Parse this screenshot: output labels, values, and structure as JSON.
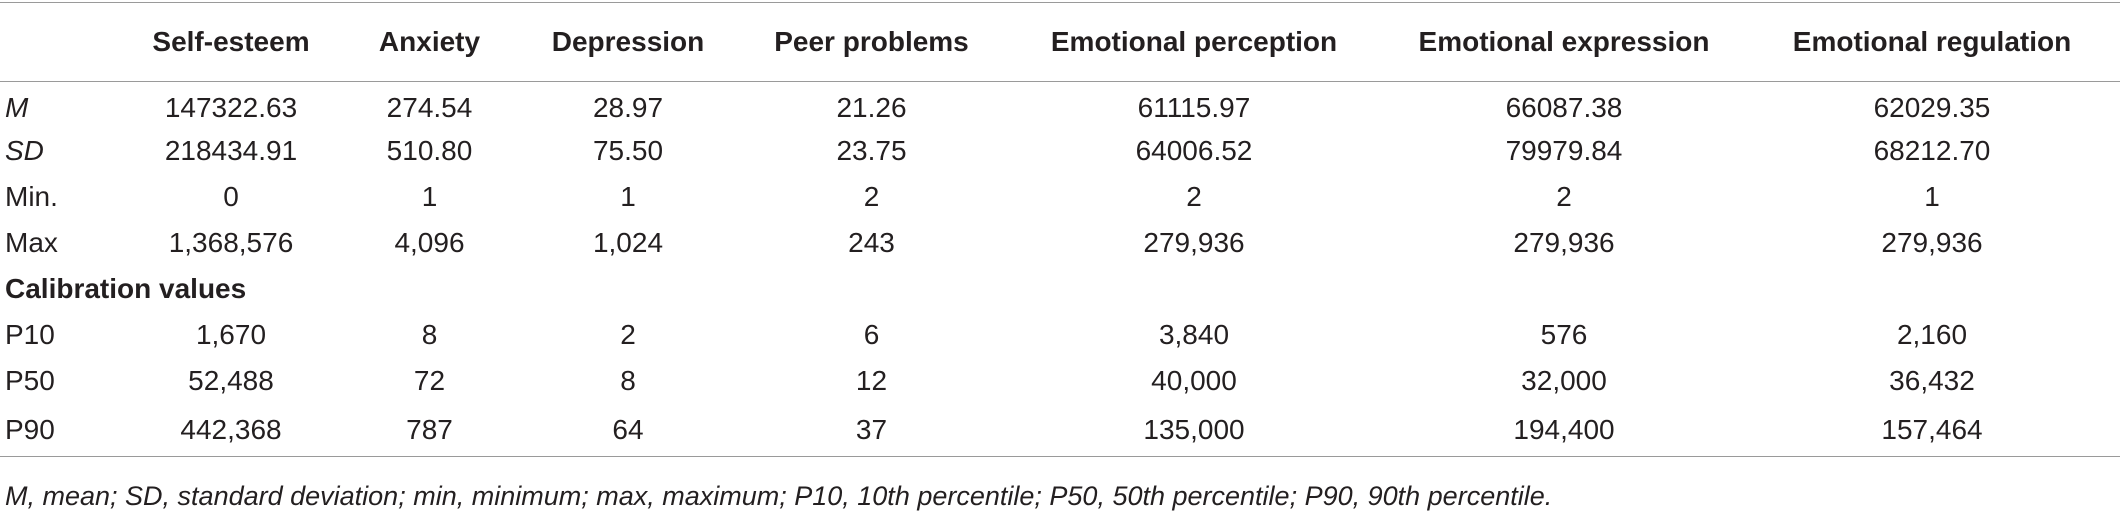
{
  "table": {
    "columns": [
      "",
      "Self-esteem",
      "Anxiety",
      "Depression",
      "Peer problems",
      "Emotional perception",
      "Emotional expression",
      "Emotional regulation"
    ],
    "rows": [
      {
        "label": "M",
        "values": [
          "147322.63",
          "274.54",
          "28.97",
          "21.26",
          "61115.97",
          "66087.38",
          "62029.35"
        ]
      },
      {
        "label": "SD",
        "values": [
          "218434.91",
          "510.80",
          "75.50",
          "23.75",
          "64006.52",
          "79979.84",
          "68212.70"
        ]
      },
      {
        "label": "Min.",
        "values": [
          "0",
          "1",
          "1",
          "2",
          "2",
          "2",
          "1"
        ]
      },
      {
        "label": "Max",
        "values": [
          "1,368,576",
          "4,096",
          "1,024",
          "243",
          "279,936",
          "279,936",
          "279,936"
        ]
      }
    ],
    "section_title": "Calibration values",
    "calibration_rows": [
      {
        "label": "P10",
        "values": [
          "1,670",
          "8",
          "2",
          "6",
          "3,840",
          "576",
          "2,160"
        ]
      },
      {
        "label": "P50",
        "values": [
          "52,488",
          "72",
          "8",
          "12",
          "40,000",
          "32,000",
          "36,432"
        ]
      },
      {
        "label": "P90",
        "values": [
          "442,368",
          "787",
          "64",
          "37",
          "135,000",
          "194,400",
          "157,464"
        ]
      }
    ]
  },
  "footnote": "M, mean; SD, standard deviation; min, minimum; max, maximum; P10, 10th percentile; P50, 50th percentile; P90, 90th percentile."
}
